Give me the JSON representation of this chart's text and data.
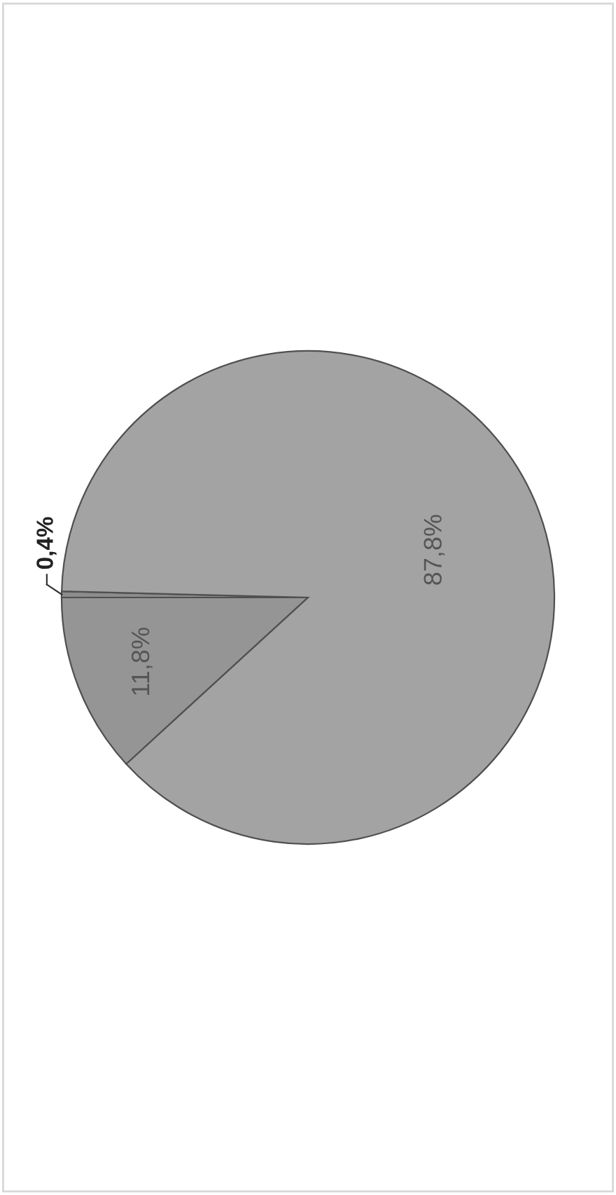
{
  "chart_data": {
    "type": "pie",
    "categories": [
      null,
      null,
      null
    ],
    "values": [
      0.4,
      11.8,
      87.8
    ],
    "value_labels": [
      "0,4%",
      "11,8%",
      "87,8%"
    ],
    "colors": [
      "#8c8c8c",
      "#959595",
      "#a3a3a3"
    ]
  }
}
